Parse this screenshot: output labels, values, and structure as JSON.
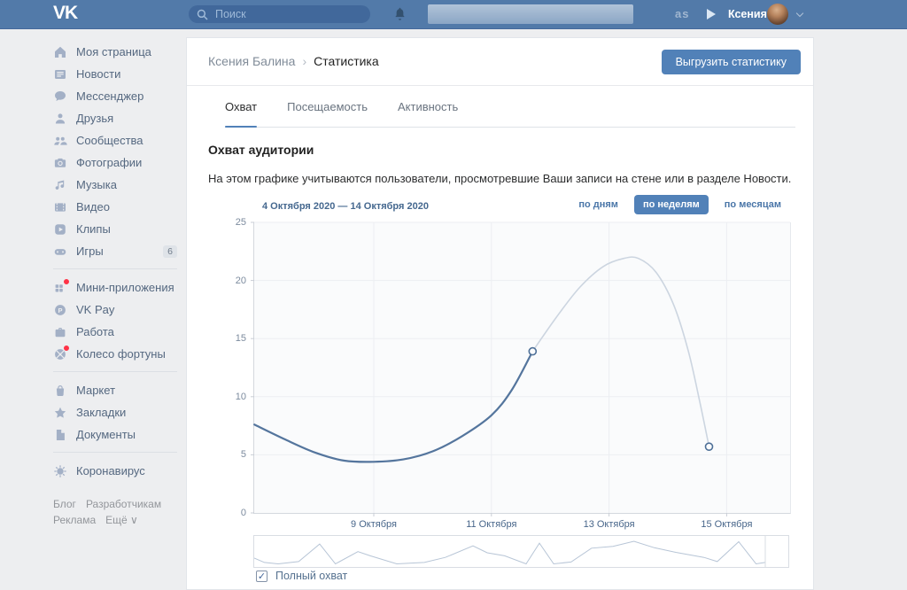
{
  "topbar": {
    "logo": "VK",
    "search_placeholder": "Поиск",
    "scrobbler_label": "as",
    "user_name": "Ксения"
  },
  "sidebar": {
    "items": [
      {
        "label": "Моя страница",
        "icon": "home-icon"
      },
      {
        "label": "Новости",
        "icon": "news-icon"
      },
      {
        "label": "Мессенджер",
        "icon": "messenger-icon"
      },
      {
        "label": "Друзья",
        "icon": "friends-icon"
      },
      {
        "label": "Сообщества",
        "icon": "communities-icon"
      },
      {
        "label": "Фотографии",
        "icon": "photos-icon"
      },
      {
        "label": "Музыка",
        "icon": "music-icon"
      },
      {
        "label": "Видео",
        "icon": "video-icon"
      },
      {
        "label": "Клипы",
        "icon": "clips-icon"
      },
      {
        "label": "Игры",
        "icon": "games-icon",
        "badge": "6"
      },
      {
        "divider": true
      },
      {
        "label": "Мини-приложения",
        "icon": "miniapps-icon",
        "dot": true
      },
      {
        "label": "VK Pay",
        "icon": "vkpay-icon"
      },
      {
        "label": "Работа",
        "icon": "work-icon"
      },
      {
        "label": "Колесо фортуны",
        "icon": "fortune-wheel-icon",
        "dot": true
      },
      {
        "divider": true
      },
      {
        "label": "Маркет",
        "icon": "market-icon"
      },
      {
        "label": "Закладки",
        "icon": "bookmarks-icon"
      },
      {
        "label": "Документы",
        "icon": "documents-icon"
      },
      {
        "divider": true
      },
      {
        "label": "Коронавирус",
        "icon": "coronavirus-icon"
      }
    ],
    "footer_links": [
      "Блог",
      "Разработчикам",
      "Реклама",
      "Ещё"
    ]
  },
  "header": {
    "breadcrumb": {
      "root": "Ксения Балина",
      "separator": "›",
      "current": "Статистика"
    },
    "export_button": "Выгрузить статистику"
  },
  "tabs": [
    {
      "label": "Охват",
      "active": true
    },
    {
      "label": "Посещаемость",
      "active": false
    },
    {
      "label": "Активность",
      "active": false
    }
  ],
  "section": {
    "title": "Охват аудитории",
    "description": "На этом графике учитываются пользователи, просмотревшие Ваши записи на стене или в разделе Новости."
  },
  "controls": {
    "date_range": "4 Октября 2020 — 14 Октября 2020",
    "modes": [
      {
        "label": "по дням",
        "active": false
      },
      {
        "label": "по неделям",
        "active": true
      },
      {
        "label": "по месяцам",
        "active": false
      }
    ]
  },
  "chart_data": {
    "type": "line",
    "title": "Охват аудитории",
    "ylim": [
      0,
      25
    ],
    "yticks": [
      0,
      5,
      10,
      15,
      20,
      25
    ],
    "xtick_labels": [
      "9 Октября",
      "11 Октября",
      "13 Октября",
      "15 Октября"
    ],
    "xtick_days": [
      9,
      11,
      13,
      15
    ],
    "x_domain_days": [
      6.97,
      16.08
    ],
    "grid": true,
    "legend_position": "bottom",
    "series": [
      {
        "name": "Полный охват",
        "segment": "факт",
        "style": "solid",
        "color": "#54759d",
        "points": [
          {
            "day": 6.97,
            "value": 7.6
          },
          {
            "day": 7.5,
            "value": 6.3
          },
          {
            "day": 8,
            "value": 5.2
          },
          {
            "day": 8.5,
            "value": 4.5
          },
          {
            "day": 9,
            "value": 4.4
          },
          {
            "day": 9.5,
            "value": 4.6
          },
          {
            "day": 10,
            "value": 5.3
          },
          {
            "day": 10.5,
            "value": 6.6
          },
          {
            "day": 11,
            "value": 8.4
          },
          {
            "day": 11.35,
            "value": 10.6
          },
          {
            "day": 11.7,
            "value": 13.9
          }
        ]
      },
      {
        "name": "Полный охват",
        "segment": "неполный период",
        "style": "faded",
        "color": "#ccd5e0",
        "points": [
          {
            "day": 11.7,
            "value": 13.9
          },
          {
            "day": 12.1,
            "value": 16.8
          },
          {
            "day": 12.5,
            "value": 19.4
          },
          {
            "day": 12.9,
            "value": 21.2
          },
          {
            "day": 13.25,
            "value": 21.9
          },
          {
            "day": 13.5,
            "value": 21.9
          },
          {
            "day": 13.8,
            "value": 20.7
          },
          {
            "day": 14.1,
            "value": 17.9
          },
          {
            "day": 14.35,
            "value": 13.9
          },
          {
            "day": 14.55,
            "value": 9.4
          },
          {
            "day": 14.7,
            "value": 5.7
          }
        ]
      }
    ],
    "markers": [
      {
        "day": 11.7,
        "value": 13.9
      },
      {
        "day": 14.7,
        "value": 5.7
      }
    ],
    "navigator": {
      "divider_fraction": 0.954,
      "points": [
        [
          0,
          0.27
        ],
        [
          0.02,
          0.08
        ],
        [
          0.047,
          0.02
        ],
        [
          0.087,
          0.12
        ],
        [
          0.128,
          0.88
        ],
        [
          0.159,
          0.02
        ],
        [
          0.203,
          0.55
        ],
        [
          0.227,
          0.37
        ],
        [
          0.279,
          0.02
        ],
        [
          0.333,
          0.08
        ],
        [
          0.374,
          0.3
        ],
        [
          0.428,
          0.8
        ],
        [
          0.456,
          0.5
        ],
        [
          0.49,
          0.37
        ],
        [
          0.532,
          0.02
        ],
        [
          0.558,
          0.92
        ],
        [
          0.586,
          0.02
        ],
        [
          0.62,
          0.1
        ],
        [
          0.66,
          0.7
        ],
        [
          0.702,
          0.78
        ],
        [
          0.743,
          1
        ],
        [
          0.783,
          0.72
        ],
        [
          0.825,
          0.52
        ],
        [
          0.88,
          0.3
        ],
        [
          0.906,
          0.12
        ],
        [
          0.948,
          0.98
        ],
        [
          0.982,
          0.02
        ],
        [
          1,
          0.08
        ]
      ]
    }
  },
  "legend": {
    "label": "Полный охват",
    "checked": true
  },
  "colors": {
    "accent": "#5181b8",
    "header_bg": "#527aa9",
    "page_bg": "#edeef0",
    "line_solid": "#54759d",
    "line_faded": "#ccd5e0",
    "notification_dot": "#ff3347"
  }
}
